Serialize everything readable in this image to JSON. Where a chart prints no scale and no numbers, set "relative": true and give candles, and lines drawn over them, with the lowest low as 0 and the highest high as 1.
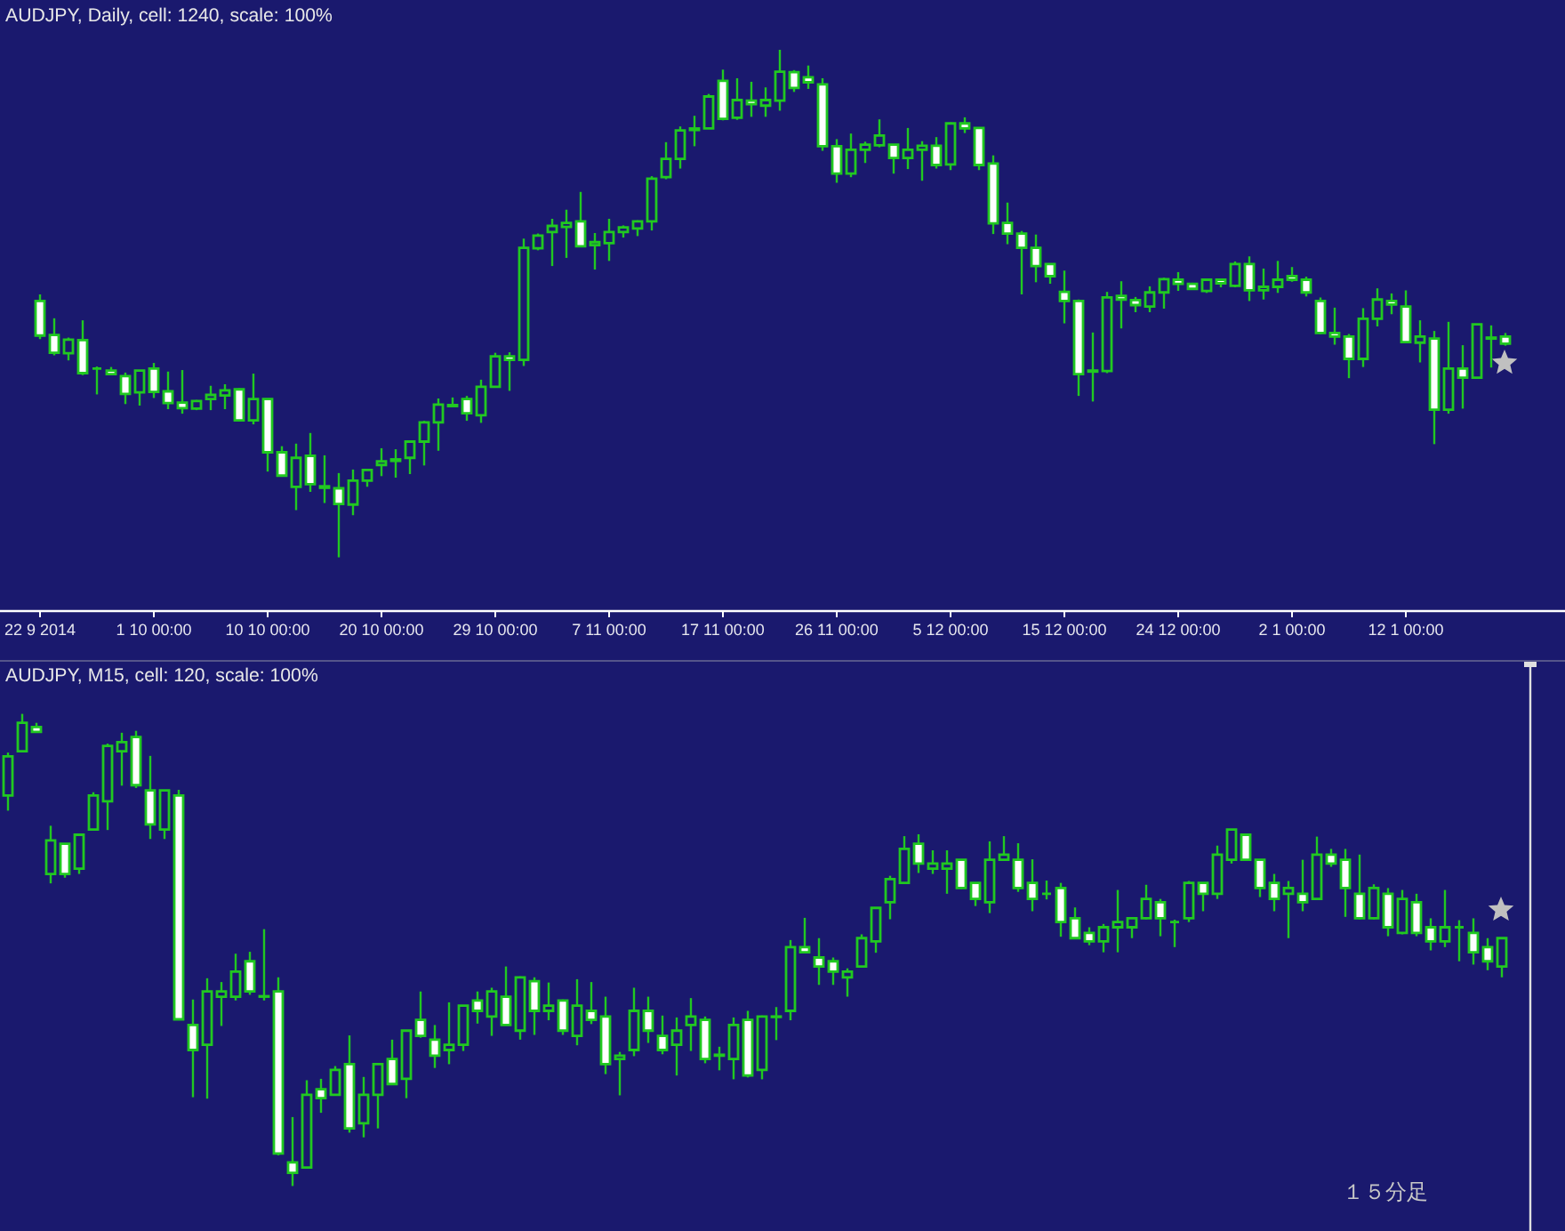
{
  "chart_data": [
    {
      "type": "candlestick",
      "title": "AUDJPY, Daily, cell: 1240, scale: 100%",
      "relative": true,
      "color": "#21c821",
      "categories": [
        "22 9 2014",
        null,
        null,
        null,
        null,
        null,
        null,
        null,
        "1 10 00:00",
        null,
        null,
        null,
        null,
        null,
        null,
        null,
        "10 10 00:00",
        null,
        null,
        null,
        null,
        null,
        null,
        null,
        "20 10 00:00",
        null,
        null,
        null,
        null,
        null,
        null,
        null,
        "29 10 00:00",
        null,
        null,
        null,
        null,
        null,
        null,
        null,
        "7 11 00:00",
        null,
        null,
        null,
        null,
        null,
        null,
        null,
        "17 11 00:00",
        null,
        null,
        null,
        null,
        null,
        null,
        null,
        "26 11 00:00",
        null,
        null,
        null,
        null,
        null,
        null,
        null,
        "5 12 00:00",
        null,
        null,
        null,
        null,
        null,
        null,
        null,
        "15 12 00:00",
        null,
        null,
        null,
        null,
        null,
        null,
        null,
        "24 12 00:00",
        null,
        null,
        null,
        null,
        null,
        null,
        null,
        "2 1 00:00",
        null,
        null,
        null,
        null,
        null,
        null,
        null,
        "12 1 00:00",
        null,
        null,
        null,
        null,
        null,
        null,
        null
      ],
      "ohlc": [
        [
          0.505,
          0.518,
          0.43,
          0.437
        ],
        [
          0.438,
          0.471,
          0.398,
          0.403
        ],
        [
          0.402,
          0.433,
          0.388,
          0.429
        ],
        [
          0.428,
          0.467,
          0.359,
          0.363
        ],
        [
          0.372,
          0.376,
          0.321,
          0.372
        ],
        [
          0.368,
          0.375,
          0.36,
          0.361
        ],
        [
          0.357,
          0.364,
          0.302,
          0.322
        ],
        [
          0.325,
          0.369,
          0.299,
          0.368
        ],
        [
          0.372,
          0.383,
          0.314,
          0.326
        ],
        [
          0.327,
          0.366,
          0.292,
          0.304
        ],
        [
          0.305,
          0.369,
          0.283,
          0.294
        ],
        [
          0.293,
          0.31,
          0.29,
          0.308
        ],
        [
          0.312,
          0.338,
          0.29,
          0.32
        ],
        [
          0.319,
          0.341,
          0.292,
          0.329
        ],
        [
          0.331,
          0.333,
          0.268,
          0.27
        ],
        [
          0.27,
          0.362,
          0.262,
          0.312
        ],
        [
          0.312,
          0.312,
          0.169,
          0.207
        ],
        [
          0.207,
          0.219,
          0.161,
          0.161
        ],
        [
          0.139,
          0.224,
          0.093,
          0.196
        ],
        [
          0.2,
          0.245,
          0.129,
          0.144
        ],
        [
          0.14,
          0.201,
          0.107,
          0.137
        ],
        [
          0.136,
          0.166,
          0,
          0.105
        ],
        [
          0.104,
          0.173,
          0.083,
          0.151
        ],
        [
          0.151,
          0.172,
          0.139,
          0.172
        ],
        [
          0.182,
          0.215,
          0.16,
          0.189
        ],
        [
          0.19,
          0.213,
          0.157,
          0.193
        ],
        [
          0.196,
          0.23,
          0.164,
          0.228
        ],
        [
          0.228,
          0.269,
          0.181,
          0.266
        ],
        [
          0.266,
          0.313,
          0.21,
          0.301
        ],
        [
          0.298,
          0.315,
          0.297,
          0.3
        ],
        [
          0.312,
          0.318,
          0.269,
          0.284
        ],
        [
          0.28,
          0.35,
          0.265,
          0.336
        ],
        [
          0.336,
          0.403,
          0.336,
          0.396
        ],
        [
          0.396,
          0.404,
          0.328,
          0.389
        ],
        [
          0.389,
          0.628,
          0.377,
          0.61
        ],
        [
          0.609,
          0.638,
          0.605,
          0.634
        ],
        [
          0.641,
          0.667,
          0.574,
          0.653
        ],
        [
          0.651,
          0.685,
          0.59,
          0.659
        ],
        [
          0.662,
          0.72,
          0.612,
          0.613
        ],
        [
          0.615,
          0.639,
          0.567,
          0.621
        ],
        [
          0.619,
          0.667,
          0.584,
          0.641
        ],
        [
          0.641,
          0.654,
          0.63,
          0.65
        ],
        [
          0.648,
          0.664,
          0.633,
          0.662
        ],
        [
          0.662,
          0.751,
          0.644,
          0.746
        ],
        [
          0.749,
          0.818,
          0.745,
          0.785
        ],
        [
          0.785,
          0.849,
          0.766,
          0.841
        ],
        [
          0.842,
          0.87,
          0.81,
          0.845
        ],
        [
          0.845,
          0.913,
          0.844,
          0.908
        ],
        [
          0.939,
          0.961,
          0.861,
          0.864
        ],
        [
          0.866,
          0.944,
          0.862,
          0.901
        ],
        [
          0.9,
          0.937,
          0.868,
          0.893
        ],
        [
          0.89,
          0.926,
          0.868,
          0.901
        ],
        [
          0.9,
          1,
          0.88,
          0.957
        ],
        [
          0.956,
          0.96,
          0.917,
          0.925
        ],
        [
          0.946,
          0.969,
          0.923,
          0.936
        ],
        [
          0.932,
          0.944,
          0.801,
          0.81
        ],
        [
          0.81,
          0.824,
          0.738,
          0.756
        ],
        [
          0.756,
          0.835,
          0.749,
          0.803
        ],
        [
          0.803,
          0.819,
          0.777,
          0.813
        ],
        [
          0.812,
          0.863,
          0.808,
          0.831
        ],
        [
          0.813,
          0.814,
          0.756,
          0.787
        ],
        [
          0.787,
          0.846,
          0.765,
          0.803
        ],
        [
          0.803,
          0.82,
          0.742,
          0.811
        ],
        [
          0.811,
          0.828,
          0.766,
          0.773
        ],
        [
          0.774,
          0.857,
          0.763,
          0.855
        ],
        [
          0.855,
          0.867,
          0.836,
          0.845
        ],
        [
          0.846,
          0.846,
          0.763,
          0.773
        ],
        [
          0.776,
          0.792,
          0.637,
          0.658
        ],
        [
          0.659,
          0.699,
          0.617,
          0.638
        ],
        [
          0.638,
          0.643,
          0.518,
          0.61
        ],
        [
          0.61,
          0.636,
          0.542,
          0.574
        ],
        [
          0.578,
          0.579,
          0.539,
          0.554
        ],
        [
          0.523,
          0.565,
          0.461,
          0.505
        ],
        [
          0.505,
          0.508,
          0.318,
          0.361
        ],
        [
          0.368,
          0.443,
          0.307,
          0.366
        ],
        [
          0.367,
          0.523,
          0.363,
          0.512
        ],
        [
          0.515,
          0.544,
          0.451,
          0.508
        ],
        [
          0.507,
          0.513,
          0.483,
          0.497
        ],
        [
          0.494,
          0.534,
          0.483,
          0.522
        ],
        [
          0.522,
          0.551,
          0.49,
          0.548
        ],
        [
          0.547,
          0.562,
          0.525,
          0.539
        ],
        [
          0.539,
          0.541,
          0.527,
          0.529
        ],
        [
          0.525,
          0.548,
          0.521,
          0.547
        ],
        [
          0.547,
          0.549,
          0.532,
          0.54
        ],
        [
          0.535,
          0.583,
          0.532,
          0.578
        ],
        [
          0.578,
          0.593,
          0.505,
          0.526
        ],
        [
          0.526,
          0.569,
          0.508,
          0.533
        ],
        [
          0.533,
          0.584,
          0.521,
          0.547
        ],
        [
          0.554,
          0.572,
          0.543,
          0.547
        ],
        [
          0.547,
          0.553,
          0.514,
          0.522
        ],
        [
          0.505,
          0.512,
          0.44,
          0.442
        ],
        [
          0.442,
          0.492,
          0.419,
          0.435
        ],
        [
          0.435,
          0.44,
          0.353,
          0.391
        ],
        [
          0.391,
          0.491,
          0.375,
          0.47
        ],
        [
          0.47,
          0.53,
          0.455,
          0.508
        ],
        [
          0.505,
          0.52,
          0.479,
          0.498
        ],
        [
          0.494,
          0.526,
          0.423,
          0.424
        ],
        [
          0.423,
          0.467,
          0.384,
          0.435
        ],
        [
          0.431,
          0.446,
          0.223,
          0.291
        ],
        [
          0.291,
          0.464,
          0.283,
          0.372
        ],
        [
          0.372,
          0.418,
          0.293,
          0.354
        ],
        [
          0.354,
          0.459,
          0.354,
          0.459
        ],
        [
          0.433,
          0.457,
          0.374,
          0.431
        ],
        [
          0.435,
          0.442,
          0.417,
          0.421
        ]
      ],
      "series": [
        {
          "type": "scatter",
          "marker": "star",
          "color": "#c0c0c0",
          "values": [
            null,
            null,
            null,
            null,
            null,
            null,
            null,
            null,
            null,
            null,
            null,
            null,
            null,
            null,
            null,
            null,
            null,
            null,
            null,
            null,
            null,
            null,
            null,
            null,
            null,
            null,
            null,
            null,
            null,
            null,
            null,
            null,
            null,
            null,
            null,
            null,
            null,
            null,
            null,
            null,
            null,
            null,
            null,
            null,
            null,
            null,
            null,
            null,
            null,
            null,
            null,
            null,
            null,
            null,
            null,
            null,
            null,
            null,
            null,
            null,
            null,
            null,
            null,
            null,
            null,
            null,
            null,
            null,
            null,
            null,
            null,
            null,
            null,
            null,
            null,
            null,
            null,
            null,
            null,
            null,
            null,
            null,
            null,
            null,
            null,
            null,
            null,
            null,
            null,
            null,
            null,
            null,
            null,
            null,
            null,
            null,
            null,
            null,
            null,
            null,
            null,
            null,
            null,
            0.383
          ]
        }
      ]
    },
    {
      "type": "candlestick",
      "title": "AUDJPY, M15, cell: 120, scale: 100%",
      "relative": true,
      "color": "#21c821",
      "categories": [
        null,
        null,
        null,
        null,
        null,
        null,
        null,
        null,
        null,
        null,
        null,
        null,
        null,
        null,
        null,
        null,
        null,
        null,
        null,
        null,
        null,
        null,
        null,
        null,
        null,
        null,
        null,
        null,
        null,
        null,
        null,
        null,
        null,
        null,
        null,
        null,
        null,
        null,
        null,
        null,
        null,
        null,
        null,
        null,
        null,
        null,
        null,
        null,
        null,
        null,
        null,
        null,
        null,
        null,
        null,
        null,
        null,
        null,
        null,
        null,
        null,
        null,
        null,
        null,
        null,
        null,
        null,
        null,
        null,
        null,
        null,
        null,
        null,
        null,
        null,
        null,
        null,
        null,
        null,
        null,
        null,
        null,
        null,
        null,
        null,
        null,
        null,
        null,
        null,
        null,
        null,
        null,
        null,
        null,
        null,
        null,
        null,
        null,
        null,
        null,
        null,
        null,
        null,
        null,
        null,
        null
      ],
      "ohlc": [
        [
          0.827,
          0.918,
          0.795,
          0.91
        ],
        [
          0.921,
          1,
          0.92,
          0.981
        ],
        [
          0.972,
          0.981,
          0.961,
          0.962
        ],
        [
          0.661,
          0.763,
          0.641,
          0.732
        ],
        [
          0.725,
          0.726,
          0.653,
          0.661
        ],
        [
          0.672,
          0.746,
          0.661,
          0.744
        ],
        [
          0.755,
          0.834,
          0.755,
          0.827
        ],
        [
          0.815,
          0.937,
          0.754,
          0.932
        ],
        [
          0.921,
          0.96,
          0.848,
          0.94
        ],
        [
          0.951,
          0.964,
          0.843,
          0.849
        ],
        [
          0.838,
          0.911,
          0.735,
          0.766
        ],
        [
          0.755,
          0.839,
          0.735,
          0.838
        ],
        [
          0.827,
          0.839,
          0.352,
          0.353
        ],
        [
          0.341,
          0.395,
          0.188,
          0.288
        ],
        [
          0.299,
          0.44,
          0.185,
          0.412
        ],
        [
          0.401,
          0.432,
          0.339,
          0.412
        ],
        [
          0.401,
          0.492,
          0.393,
          0.454
        ],
        [
          0.476,
          0.496,
          0.405,
          0.412
        ],
        [
          0.402,
          0.544,
          0.393,
          0.401
        ],
        [
          0.412,
          0.442,
          0.065,
          0.069
        ],
        [
          0.05,
          0.146,
          0,
          0.028
        ],
        [
          0.039,
          0.224,
          0.039,
          0.193
        ],
        [
          0.205,
          0.227,
          0.155,
          0.186
        ],
        [
          0.193,
          0.254,
          0.192,
          0.246
        ],
        [
          0.258,
          0.319,
          0.113,
          0.122
        ],
        [
          0.133,
          0.231,
          0.103,
          0.193
        ],
        [
          0.193,
          0.259,
          0.122,
          0.258
        ],
        [
          0.269,
          0.31,
          0.215,
          0.216
        ],
        [
          0.227,
          0.33,
          0.186,
          0.329
        ],
        [
          0.352,
          0.412,
          0.314,
          0.318
        ],
        [
          0.31,
          0.341,
          0.25,
          0.276
        ],
        [
          0.288,
          0.389,
          0.258,
          0.299
        ],
        [
          0.299,
          0.383,
          0.286,
          0.382
        ],
        [
          0.393,
          0.412,
          0.344,
          0.371
        ],
        [
          0.359,
          0.42,
          0.318,
          0.412
        ],
        [
          0.401,
          0.465,
          0.341,
          0.341
        ],
        [
          0.329,
          0.444,
          0.31,
          0.442
        ],
        [
          0.434,
          0.442,
          0.32,
          0.371
        ],
        [
          0.371,
          0.431,
          0.351,
          0.382
        ],
        [
          0.393,
          0.395,
          0.32,
          0.329
        ],
        [
          0.318,
          0.438,
          0.298,
          0.382
        ],
        [
          0.371,
          0.432,
          0.343,
          0.352
        ],
        [
          0.359,
          0.401,
          0.237,
          0.258
        ],
        [
          0.269,
          0.284,
          0.192,
          0.276
        ],
        [
          0.288,
          0.42,
          0.275,
          0.371
        ],
        [
          0.371,
          0.401,
          0.303,
          0.329
        ],
        [
          0.318,
          0.361,
          0.279,
          0.288
        ],
        [
          0.299,
          0.357,
          0.234,
          0.329
        ],
        [
          0.341,
          0.398,
          0.286,
          0.359
        ],
        [
          0.352,
          0.359,
          0.26,
          0.269
        ],
        [
          0.278,
          0.295,
          0.245,
          0.276
        ],
        [
          0.269,
          0.357,
          0.226,
          0.341
        ],
        [
          0.352,
          0.371,
          0.23,
          0.234
        ],
        [
          0.246,
          0.361,
          0.226,
          0.359
        ],
        [
          0.358,
          0.379,
          0.309,
          0.359
        ],
        [
          0.371,
          0.521,
          0.351,
          0.506
        ],
        [
          0.506,
          0.568,
          0.494,
          0.495
        ],
        [
          0.484,
          0.525,
          0.426,
          0.465
        ],
        [
          0.476,
          0.484,
          0.426,
          0.454
        ],
        [
          0.442,
          0.461,
          0.401,
          0.454
        ],
        [
          0.465,
          0.533,
          0.464,
          0.525
        ],
        [
          0.518,
          0.59,
          0.494,
          0.589
        ],
        [
          0.601,
          0.657,
          0.565,
          0.65
        ],
        [
          0.642,
          0.741,
          0.641,
          0.714
        ],
        [
          0.725,
          0.745,
          0.663,
          0.683
        ],
        [
          0.672,
          0.711,
          0.661,
          0.683
        ],
        [
          0.672,
          0.711,
          0.619,
          0.683
        ],
        [
          0.691,
          0.692,
          0.629,
          0.631
        ],
        [
          0.642,
          0.643,
          0.593,
          0.608
        ],
        [
          0.601,
          0.73,
          0.578,
          0.691
        ],
        [
          0.691,
          0.741,
          0.69,
          0.702
        ],
        [
          0.691,
          0.726,
          0.623,
          0.631
        ],
        [
          0.642,
          0.692,
          0.582,
          0.608
        ],
        [
          0.619,
          0.647,
          0.607,
          0.619
        ],
        [
          0.631,
          0.642,
          0.528,
          0.559
        ],
        [
          0.567,
          0.59,
          0.524,
          0.525
        ],
        [
          0.536,
          0.548,
          0.51,
          0.518
        ],
        [
          0.518,
          0.555,
          0.495,
          0.548
        ],
        [
          0.548,
          0.627,
          0.495,
          0.559
        ],
        [
          0.548,
          0.568,
          0.525,
          0.567
        ],
        [
          0.567,
          0.638,
          0.565,
          0.608
        ],
        [
          0.601,
          0.608,
          0.529,
          0.567
        ],
        [
          0.559,
          0.564,
          0.506,
          0.559
        ],
        [
          0.567,
          0.646,
          0.559,
          0.642
        ],
        [
          0.642,
          0.643,
          0.582,
          0.619
        ],
        [
          0.619,
          0.721,
          0.608,
          0.702
        ],
        [
          0.691,
          0.756,
          0.683,
          0.755
        ],
        [
          0.744,
          0.745,
          0.69,
          0.691
        ],
        [
          0.691,
          0.692,
          0.612,
          0.631
        ],
        [
          0.642,
          0.661,
          0.582,
          0.608
        ],
        [
          0.619,
          0.646,
          0.525,
          0.631
        ],
        [
          0.619,
          0.691,
          0.582,
          0.601
        ],
        [
          0.608,
          0.74,
          0.607,
          0.702
        ],
        [
          0.702,
          0.714,
          0.676,
          0.683
        ],
        [
          0.691,
          0.714,
          0.57,
          0.631
        ],
        [
          0.619,
          0.702,
          0.565,
          0.567
        ],
        [
          0.567,
          0.639,
          0.565,
          0.631
        ],
        [
          0.619,
          0.631,
          0.529,
          0.548
        ],
        [
          0.536,
          0.627,
          0.533,
          0.608
        ],
        [
          0.601,
          0.619,
          0.529,
          0.536
        ],
        [
          0.548,
          0.567,
          0.499,
          0.518
        ],
        [
          0.518,
          0.627,
          0.506,
          0.548
        ],
        [
          0.548,
          0.563,
          0.476,
          0.548
        ],
        [
          0.536,
          0.567,
          0.469,
          0.495
        ],
        [
          0.506,
          0.525,
          0.457,
          0.476
        ],
        [
          0.465,
          0.526,
          0.442,
          0.525
        ]
      ],
      "series": [
        {
          "type": "scatter",
          "marker": "star",
          "color": "#c0c0c0",
          "values": [
            null,
            null,
            null,
            null,
            null,
            null,
            null,
            null,
            null,
            null,
            null,
            null,
            null,
            null,
            null,
            null,
            null,
            null,
            null,
            null,
            null,
            null,
            null,
            null,
            null,
            null,
            null,
            null,
            null,
            null,
            null,
            null,
            null,
            null,
            null,
            null,
            null,
            null,
            null,
            null,
            null,
            null,
            null,
            null,
            null,
            null,
            null,
            null,
            null,
            null,
            null,
            null,
            null,
            null,
            null,
            null,
            null,
            null,
            null,
            null,
            null,
            null,
            null,
            null,
            null,
            null,
            null,
            null,
            null,
            null,
            null,
            null,
            null,
            null,
            null,
            null,
            null,
            null,
            null,
            null,
            null,
            null,
            null,
            null,
            null,
            null,
            null,
            null,
            null,
            null,
            null,
            null,
            null,
            null,
            null,
            null,
            null,
            null,
            null,
            null,
            null,
            null,
            null,
            null,
            null,
            0.585
          ]
        }
      ],
      "annotations": [
        "１５分足"
      ]
    }
  ]
}
